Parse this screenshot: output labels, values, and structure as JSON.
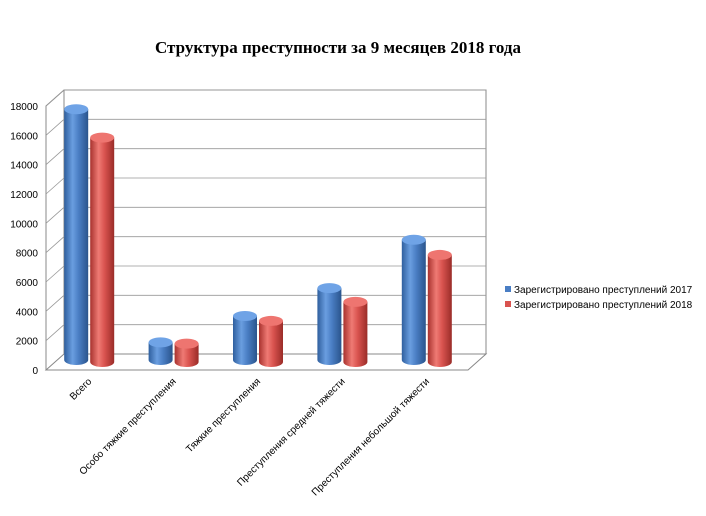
{
  "chart_data": {
    "type": "bar",
    "title": "Структура преступности за 9 месяцев 2018 года",
    "categories": [
      "Всего",
      "Особо тяжкие преступления",
      "Тяжкие преступления",
      "Преступления средней тяжести",
      "Преступления небольшой тяжести"
    ],
    "series": [
      {
        "name": "Зарегистрировано преступлений 2017",
        "values": [
          17100,
          1200,
          3000,
          4900,
          8200
        ],
        "color": "#4a7ec4"
      },
      {
        "name": "Зарегистрировано преступлений 2018",
        "values": [
          15300,
          1250,
          2800,
          4100,
          7300
        ],
        "color": "#d9534f"
      }
    ],
    "ylim": [
      0,
      18000
    ],
    "yticks": [
      "0",
      "2000",
      "4000",
      "6000",
      "8000",
      "10000",
      "12000",
      "14000",
      "16000",
      "18000"
    ],
    "grid": true,
    "legend": "right",
    "style": "3d-cylinder"
  }
}
